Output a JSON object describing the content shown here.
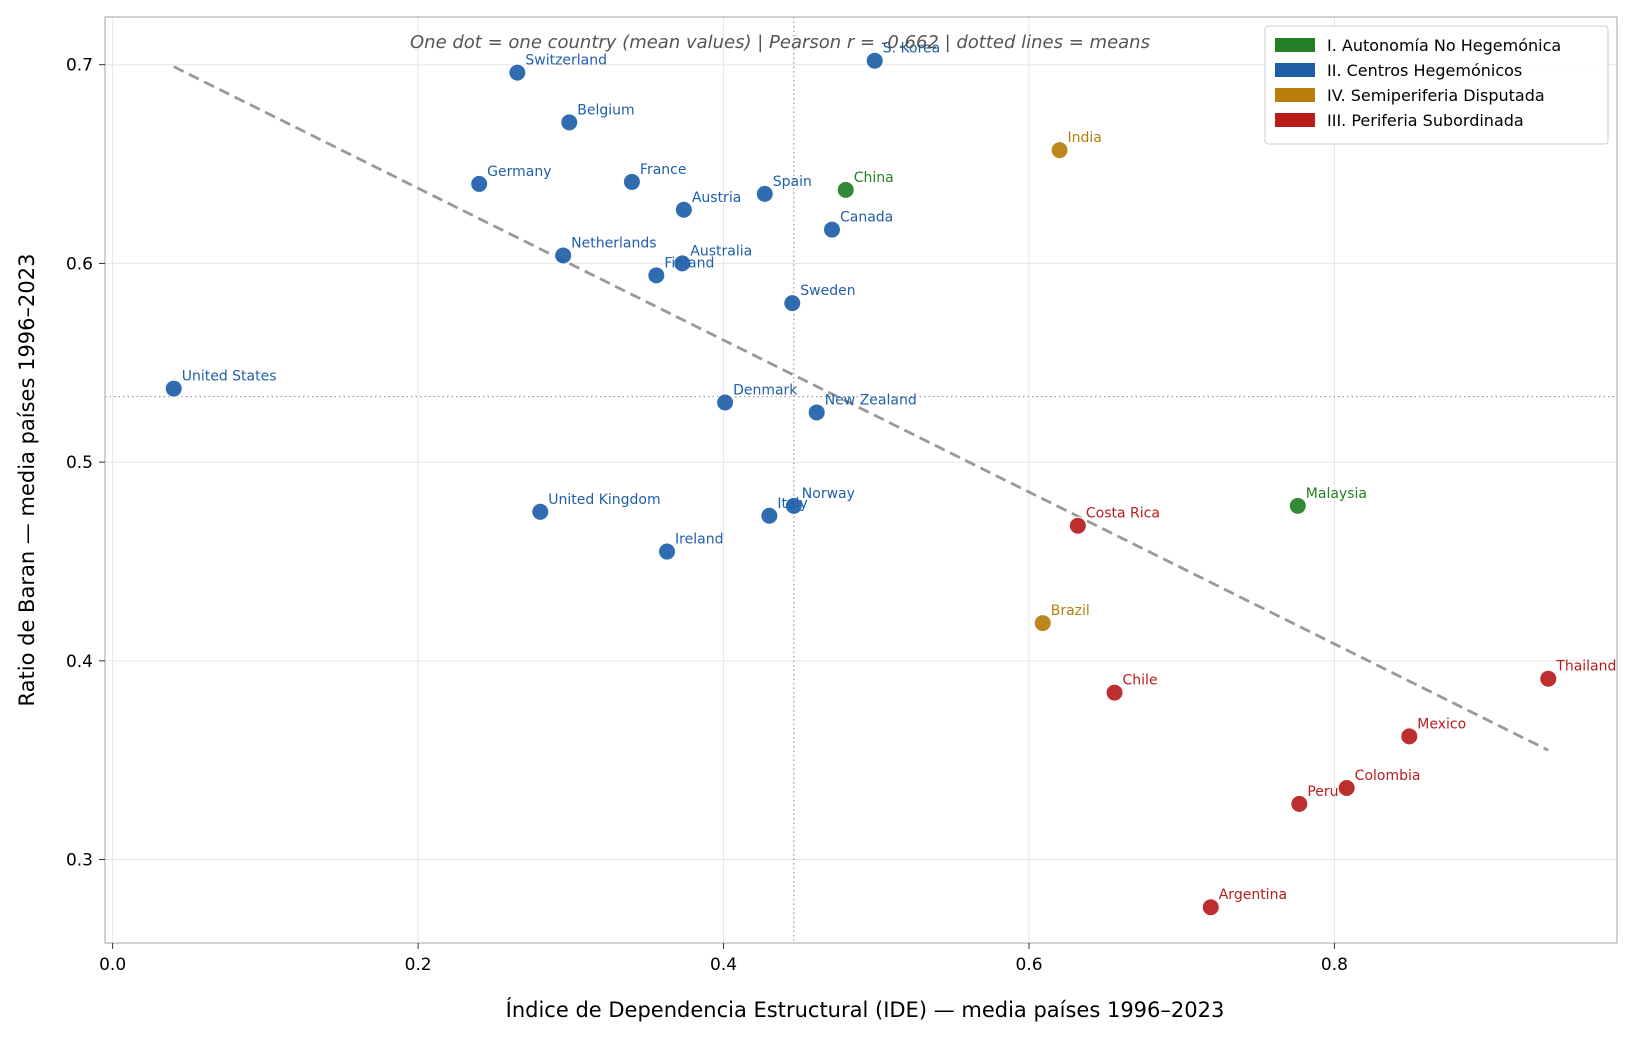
{
  "chart_data": {
    "type": "scatter",
    "subtitle": "One dot = one country (mean values)  |  Pearson r = -0.662  |  dotted lines = means",
    "xlabel": "Índice de Dependencia Estructural (IDE)  —  media países 1996–2023",
    "ylabel": "Ratio de Baran  —  media países 1996–2023",
    "xlim": [
      -0.005,
      0.985
    ],
    "ylim": [
      0.258,
      0.724
    ],
    "xticks": [
      0.0,
      0.2,
      0.4,
      0.6,
      0.8
    ],
    "xtick_labels": [
      "0.0",
      "0.2",
      "0.4",
      "0.6",
      "0.8"
    ],
    "yticks": [
      0.3,
      0.4,
      0.5,
      0.6,
      0.7
    ],
    "ytick_labels": [
      "0.3",
      "0.4",
      "0.5",
      "0.6",
      "0.7"
    ],
    "grid": true,
    "legend_position": "top-right",
    "x_mean": 0.446,
    "y_mean": 0.533,
    "trendline": {
      "x": [
        0.04,
        0.94
      ],
      "y": [
        0.699,
        0.355
      ]
    },
    "series": [
      {
        "name": "I. Autonomía No Hegemónica",
        "color": "#237f23",
        "labels": [
          "China",
          "Malaysia"
        ],
        "x": [
          0.48,
          0.776
        ],
        "y": [
          0.637,
          0.478
        ]
      },
      {
        "name": "II. Centros Hegemónicos",
        "color": "#1f5fa9",
        "labels": [
          "Switzerland",
          "S. Korea",
          "Belgium",
          "Germany",
          "France",
          "Spain",
          "Austria",
          "Canada",
          "Netherlands",
          "Australia",
          "Finland",
          "Sweden",
          "United States",
          "Denmark",
          "New Zealand",
          "Norway",
          "Italy",
          "United Kingdom",
          "Ireland"
        ],
        "x": [
          0.265,
          0.499,
          0.299,
          0.24,
          0.34,
          0.427,
          0.374,
          0.471,
          0.295,
          0.373,
          0.356,
          0.445,
          0.04,
          0.401,
          0.461,
          0.446,
          0.43,
          0.28,
          0.363
        ],
        "y": [
          0.696,
          0.702,
          0.671,
          0.64,
          0.641,
          0.635,
          0.627,
          0.617,
          0.604,
          0.6,
          0.594,
          0.58,
          0.537,
          0.53,
          0.525,
          0.478,
          0.473,
          0.475,
          0.455
        ]
      },
      {
        "name": "IV. Semiperiferia Disputada",
        "color": "#b87d0b",
        "labels": [
          "India",
          "Brazil"
        ],
        "x": [
          0.62,
          0.609
        ],
        "y": [
          0.657,
          0.419
        ]
      },
      {
        "name": "III. Periferia Subordinada",
        "color": "#b71c1c",
        "labels": [
          "Costa Rica",
          "Chile",
          "Thailand",
          "Mexico",
          "Colombia",
          "Peru",
          "Argentina"
        ],
        "x": [
          0.632,
          0.656,
          0.94,
          0.849,
          0.808,
          0.777,
          0.719
        ],
        "y": [
          0.468,
          0.384,
          0.391,
          0.362,
          0.336,
          0.328,
          0.276
        ]
      }
    ]
  }
}
